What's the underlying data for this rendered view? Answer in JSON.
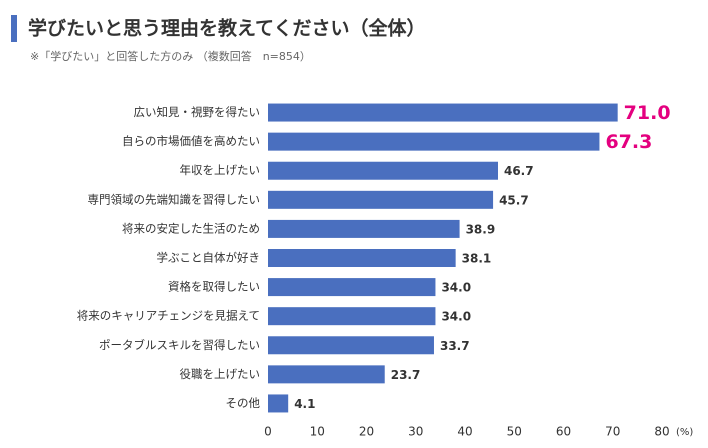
{
  "chart_data": {
    "type": "barh",
    "title": "学びたいと思う理由を教えてください（全体）",
    "subtitle": "※「学びたい」と回答した方のみ （複数回答　n=854）",
    "categories": [
      "広い知見・視野を得たい",
      "自らの市場価値を高めたい",
      "年収を上げたい",
      "専門領域の先端知識を習得したい",
      "将来の安定した生活のため",
      "学ぶこと自体が好き",
      "資格を取得したい",
      "将来のキャリアチェンジを見据えて",
      "ポータブルスキルを習得したい",
      "役職を上げたい",
      "その他"
    ],
    "values": [
      71.0,
      67.3,
      46.7,
      45.7,
      38.9,
      38.1,
      34.0,
      34.0,
      33.7,
      23.7,
      4.1
    ],
    "value_labels": [
      "71.0",
      "67.3",
      "46.7",
      "45.7",
      "38.9",
      "38.1",
      "34.0",
      "34.0",
      "33.7",
      "23.7",
      "4.1"
    ],
    "value_label_colors": [
      "#e4007f",
      "#e4007f",
      "#333333",
      "#333333",
      "#333333",
      "#333333",
      "#333333",
      "#333333",
      "#333333",
      "#333333",
      "#333333"
    ],
    "color": "#4a6fbf",
    "xlim": [
      0,
      80
    ],
    "xticks": [
      0,
      10,
      20,
      30,
      40,
      50,
      60,
      70,
      80
    ],
    "xlabel": "(%)"
  }
}
